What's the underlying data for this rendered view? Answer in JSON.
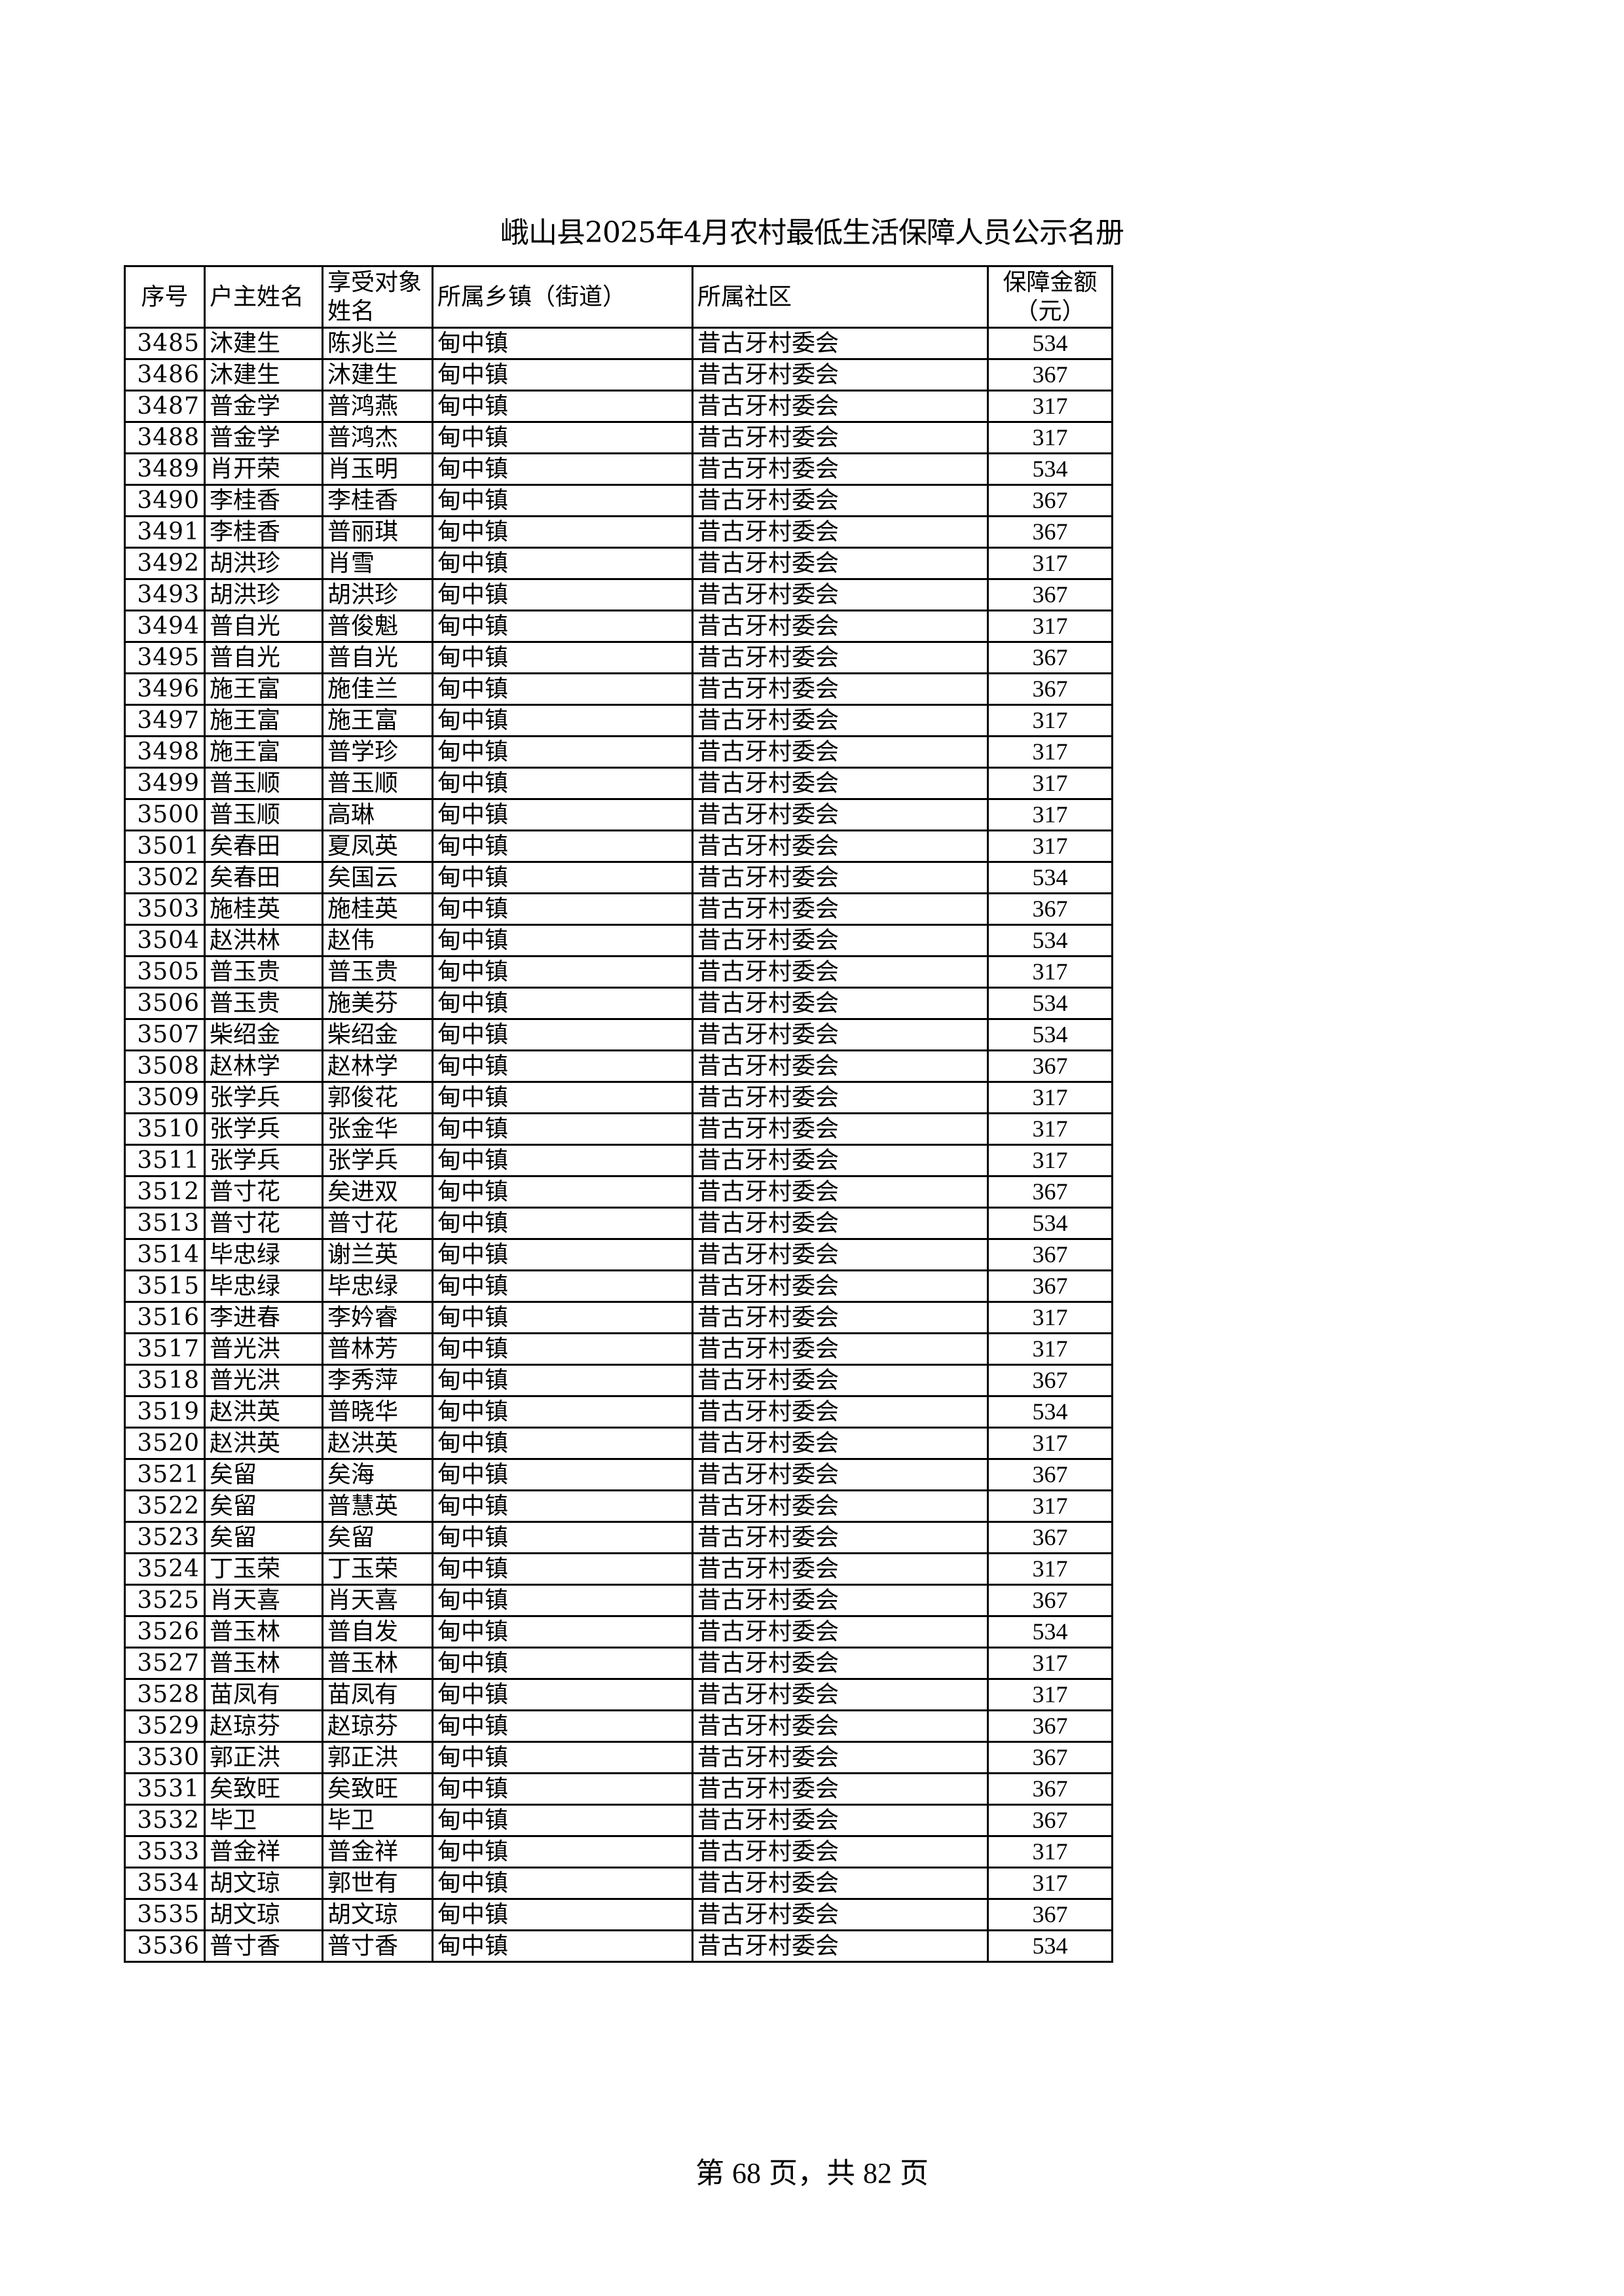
{
  "document": {
    "title": "峨山县2025年4月农村最低生活保障人员公示名册"
  },
  "table": {
    "headers": [
      "序号",
      "户主姓名",
      "享受对象姓名",
      "所属乡镇（街道）",
      "所属社区",
      "保障金额（元）"
    ],
    "rows": [
      [
        "3485",
        "沐建生",
        "陈兆兰",
        "甸中镇",
        "昔古牙村委会",
        "534"
      ],
      [
        "3486",
        "沐建生",
        "沐建生",
        "甸中镇",
        "昔古牙村委会",
        "367"
      ],
      [
        "3487",
        "普金学",
        "普鸿燕",
        "甸中镇",
        "昔古牙村委会",
        "317"
      ],
      [
        "3488",
        "普金学",
        "普鸿杰",
        "甸中镇",
        "昔古牙村委会",
        "317"
      ],
      [
        "3489",
        "肖开荣",
        "肖玉明",
        "甸中镇",
        "昔古牙村委会",
        "534"
      ],
      [
        "3490",
        "李桂香",
        "李桂香",
        "甸中镇",
        "昔古牙村委会",
        "367"
      ],
      [
        "3491",
        "李桂香",
        "普丽琪",
        "甸中镇",
        "昔古牙村委会",
        "367"
      ],
      [
        "3492",
        "胡洪珍",
        "肖雪",
        "甸中镇",
        "昔古牙村委会",
        "317"
      ],
      [
        "3493",
        "胡洪珍",
        "胡洪珍",
        "甸中镇",
        "昔古牙村委会",
        "367"
      ],
      [
        "3494",
        "普自光",
        "普俊魁",
        "甸中镇",
        "昔古牙村委会",
        "317"
      ],
      [
        "3495",
        "普自光",
        "普自光",
        "甸中镇",
        "昔古牙村委会",
        "367"
      ],
      [
        "3496",
        "施王富",
        "施佳兰",
        "甸中镇",
        "昔古牙村委会",
        "367"
      ],
      [
        "3497",
        "施王富",
        "施王富",
        "甸中镇",
        "昔古牙村委会",
        "317"
      ],
      [
        "3498",
        "施王富",
        "普学珍",
        "甸中镇",
        "昔古牙村委会",
        "317"
      ],
      [
        "3499",
        "普玉顺",
        "普玉顺",
        "甸中镇",
        "昔古牙村委会",
        "317"
      ],
      [
        "3500",
        "普玉顺",
        "高琳",
        "甸中镇",
        "昔古牙村委会",
        "317"
      ],
      [
        "3501",
        "矣春田",
        "夏凤英",
        "甸中镇",
        "昔古牙村委会",
        "317"
      ],
      [
        "3502",
        "矣春田",
        "矣国云",
        "甸中镇",
        "昔古牙村委会",
        "534"
      ],
      [
        "3503",
        "施桂英",
        "施桂英",
        "甸中镇",
        "昔古牙村委会",
        "367"
      ],
      [
        "3504",
        "赵洪林",
        "赵伟",
        "甸中镇",
        "昔古牙村委会",
        "534"
      ],
      [
        "3505",
        "普玉贵",
        "普玉贵",
        "甸中镇",
        "昔古牙村委会",
        "317"
      ],
      [
        "3506",
        "普玉贵",
        "施美芬",
        "甸中镇",
        "昔古牙村委会",
        "534"
      ],
      [
        "3507",
        "柴绍金",
        "柴绍金",
        "甸中镇",
        "昔古牙村委会",
        "534"
      ],
      [
        "3508",
        "赵林学",
        "赵林学",
        "甸中镇",
        "昔古牙村委会",
        "367"
      ],
      [
        "3509",
        "张学兵",
        "郭俊花",
        "甸中镇",
        "昔古牙村委会",
        "317"
      ],
      [
        "3510",
        "张学兵",
        "张金华",
        "甸中镇",
        "昔古牙村委会",
        "317"
      ],
      [
        "3511",
        "张学兵",
        "张学兵",
        "甸中镇",
        "昔古牙村委会",
        "317"
      ],
      [
        "3512",
        "普寸花",
        "矣进双",
        "甸中镇",
        "昔古牙村委会",
        "367"
      ],
      [
        "3513",
        "普寸花",
        "普寸花",
        "甸中镇",
        "昔古牙村委会",
        "534"
      ],
      [
        "3514",
        "毕忠绿",
        "谢兰英",
        "甸中镇",
        "昔古牙村委会",
        "367"
      ],
      [
        "3515",
        "毕忠绿",
        "毕忠绿",
        "甸中镇",
        "昔古牙村委会",
        "367"
      ],
      [
        "3516",
        "李进春",
        "李妗睿",
        "甸中镇",
        "昔古牙村委会",
        "317"
      ],
      [
        "3517",
        "普光洪",
        "普林芳",
        "甸中镇",
        "昔古牙村委会",
        "317"
      ],
      [
        "3518",
        "普光洪",
        "李秀萍",
        "甸中镇",
        "昔古牙村委会",
        "367"
      ],
      [
        "3519",
        "赵洪英",
        "普晓华",
        "甸中镇",
        "昔古牙村委会",
        "534"
      ],
      [
        "3520",
        "赵洪英",
        "赵洪英",
        "甸中镇",
        "昔古牙村委会",
        "317"
      ],
      [
        "3521",
        "矣留",
        "矣海",
        "甸中镇",
        "昔古牙村委会",
        "367"
      ],
      [
        "3522",
        "矣留",
        "普慧英",
        "甸中镇",
        "昔古牙村委会",
        "317"
      ],
      [
        "3523",
        "矣留",
        "矣留",
        "甸中镇",
        "昔古牙村委会",
        "367"
      ],
      [
        "3524",
        "丁玉荣",
        "丁玉荣",
        "甸中镇",
        "昔古牙村委会",
        "317"
      ],
      [
        "3525",
        "肖天喜",
        "肖天喜",
        "甸中镇",
        "昔古牙村委会",
        "367"
      ],
      [
        "3526",
        "普玉林",
        "普自发",
        "甸中镇",
        "昔古牙村委会",
        "534"
      ],
      [
        "3527",
        "普玉林",
        "普玉林",
        "甸中镇",
        "昔古牙村委会",
        "317"
      ],
      [
        "3528",
        "苗凤有",
        "苗凤有",
        "甸中镇",
        "昔古牙村委会",
        "317"
      ],
      [
        "3529",
        "赵琼芬",
        "赵琼芬",
        "甸中镇",
        "昔古牙村委会",
        "367"
      ],
      [
        "3530",
        "郭正洪",
        "郭正洪",
        "甸中镇",
        "昔古牙村委会",
        "367"
      ],
      [
        "3531",
        "矣致旺",
        "矣致旺",
        "甸中镇",
        "昔古牙村委会",
        "367"
      ],
      [
        "3532",
        "毕卫",
        "毕卫",
        "甸中镇",
        "昔古牙村委会",
        "367"
      ],
      [
        "3533",
        "普金祥",
        "普金祥",
        "甸中镇",
        "昔古牙村委会",
        "317"
      ],
      [
        "3534",
        "胡文琼",
        "郭世有",
        "甸中镇",
        "昔古牙村委会",
        "317"
      ],
      [
        "3535",
        "胡文琼",
        "胡文琼",
        "甸中镇",
        "昔古牙村委会",
        "367"
      ],
      [
        "3536",
        "普寸香",
        "普寸香",
        "甸中镇",
        "昔古牙村委会",
        "534"
      ]
    ]
  },
  "footer": {
    "prefix": "第",
    "page": "68",
    "middle": "页，共",
    "total": "82",
    "suffix": "页"
  }
}
